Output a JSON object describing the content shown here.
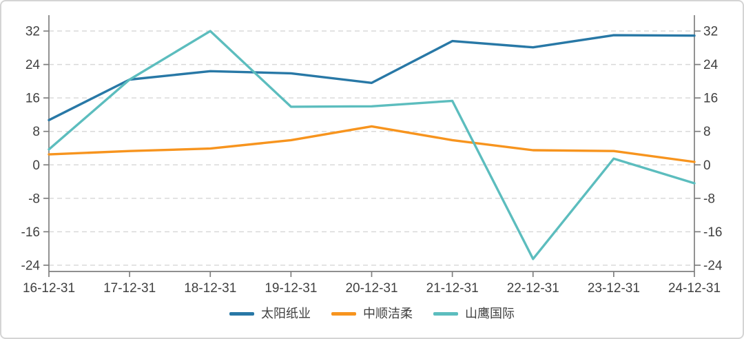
{
  "chart_data": {
    "type": "line",
    "categories": [
      "16-12-31",
      "17-12-31",
      "18-12-31",
      "19-12-31",
      "20-12-31",
      "21-12-31",
      "22-12-31",
      "23-12-31",
      "24-12-31"
    ],
    "series": [
      {
        "name": "太阳纸业",
        "color": "#2878A6",
        "values": [
          10.7,
          20.4,
          22.4,
          21.9,
          19.6,
          29.6,
          28.1,
          31.0,
          30.9
        ]
      },
      {
        "name": "中顺洁柔",
        "color": "#F7941E",
        "values": [
          2.5,
          3.3,
          3.9,
          5.9,
          9.2,
          5.9,
          3.5,
          3.3,
          0.7
        ]
      },
      {
        "name": "山鹰国际",
        "color": "#5CBDBE",
        "values": [
          3.7,
          20.4,
          32.0,
          13.9,
          14.0,
          15.3,
          -22.5,
          1.5,
          -4.4
        ]
      }
    ],
    "title": "",
    "xlabel": "",
    "ylabel": "",
    "y_ticks": [
      32,
      24,
      16,
      8,
      0,
      -8,
      -16,
      -24
    ],
    "ylim": [
      -25.5,
      35.8
    ],
    "grid": "horizontal-dashed",
    "dual_y_axis": true,
    "legend_position": "bottom"
  },
  "style": {
    "grid_color": "#d9d9d9",
    "axis_color": "#7f7f7f",
    "tick_label_color": "#404040",
    "background": "#ffffff",
    "border_color": "#d4d4d4"
  }
}
